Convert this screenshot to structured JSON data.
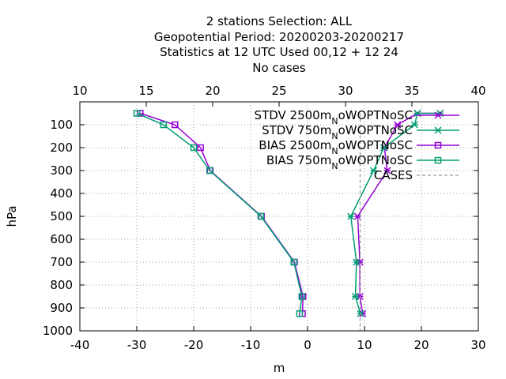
{
  "chart_data": {
    "type": "line",
    "title_lines": [
      "2 stations Selection: ALL",
      "Geopotential  Period: 20200203-20200217",
      "Statistics at 12 UTC  Used  00,12  + 12 24",
      "No cases"
    ],
    "xlabel": "m",
    "ylabel": "hPa",
    "x_range": [
      -40,
      30
    ],
    "x_ticks": [
      -40,
      -30,
      -20,
      -10,
      0,
      10,
      20,
      30
    ],
    "x2_range": [
      10,
      40
    ],
    "x2_ticks": [
      10,
      15,
      20,
      25,
      30,
      35,
      40
    ],
    "y_range": [
      1000,
      0
    ],
    "y_ticks": [
      100,
      200,
      300,
      400,
      500,
      600,
      700,
      800,
      900,
      1000
    ],
    "grid": true,
    "legend_position": "top-right",
    "series": [
      {
        "name": "STDV 2500m",
        "name_sub": "N",
        "name_rest": "oWOPTNoSC",
        "color": "#9400d3",
        "marker": "cross",
        "points": [
          [
            23.3,
            50
          ],
          [
            19.3,
            50
          ],
          [
            15.8,
            100
          ],
          [
            13.5,
            200
          ],
          [
            14.0,
            300
          ],
          [
            8.8,
            500
          ],
          [
            9.2,
            700
          ],
          [
            9.2,
            850
          ],
          [
            9.7,
            925
          ]
        ]
      },
      {
        "name": "STDV 750m",
        "name_sub": "N",
        "name_rest": "oWOPTNoSC",
        "color": "#009e73",
        "marker": "cross",
        "points": [
          [
            23.3,
            50
          ],
          [
            19.3,
            50
          ],
          [
            18.8,
            100
          ],
          [
            13.4,
            200
          ],
          [
            11.6,
            300
          ],
          [
            7.6,
            500
          ],
          [
            8.6,
            700
          ],
          [
            8.4,
            850
          ],
          [
            9.3,
            925
          ]
        ]
      },
      {
        "name": "BIAS 2500m",
        "name_sub": "N",
        "name_rest": "oWOPTNoSC",
        "color": "#9400d3",
        "marker": "square",
        "points": [
          [
            -29.4,
            50
          ],
          [
            -23.3,
            100
          ],
          [
            -18.8,
            200
          ],
          [
            -17.1,
            300
          ],
          [
            -8.1,
            500
          ],
          [
            -2.3,
            700
          ],
          [
            -0.8,
            850
          ],
          [
            -0.9,
            925
          ]
        ]
      },
      {
        "name": "BIAS 750m",
        "name_sub": "N",
        "name_rest": "oWOPTNoSC",
        "color": "#009e73",
        "marker": "square",
        "points": [
          [
            -30.0,
            50
          ],
          [
            -25.3,
            100
          ],
          [
            -20.0,
            200
          ],
          [
            -17.2,
            300
          ],
          [
            -8.2,
            500
          ],
          [
            -2.4,
            700
          ],
          [
            -1.0,
            850
          ],
          [
            -1.4,
            925
          ]
        ]
      },
      {
        "name": "CASES",
        "color": "#999999",
        "dashed": true,
        "axis": "x2",
        "points": [
          [
            31.1,
            50
          ],
          [
            31.1,
            1000
          ]
        ]
      }
    ]
  }
}
